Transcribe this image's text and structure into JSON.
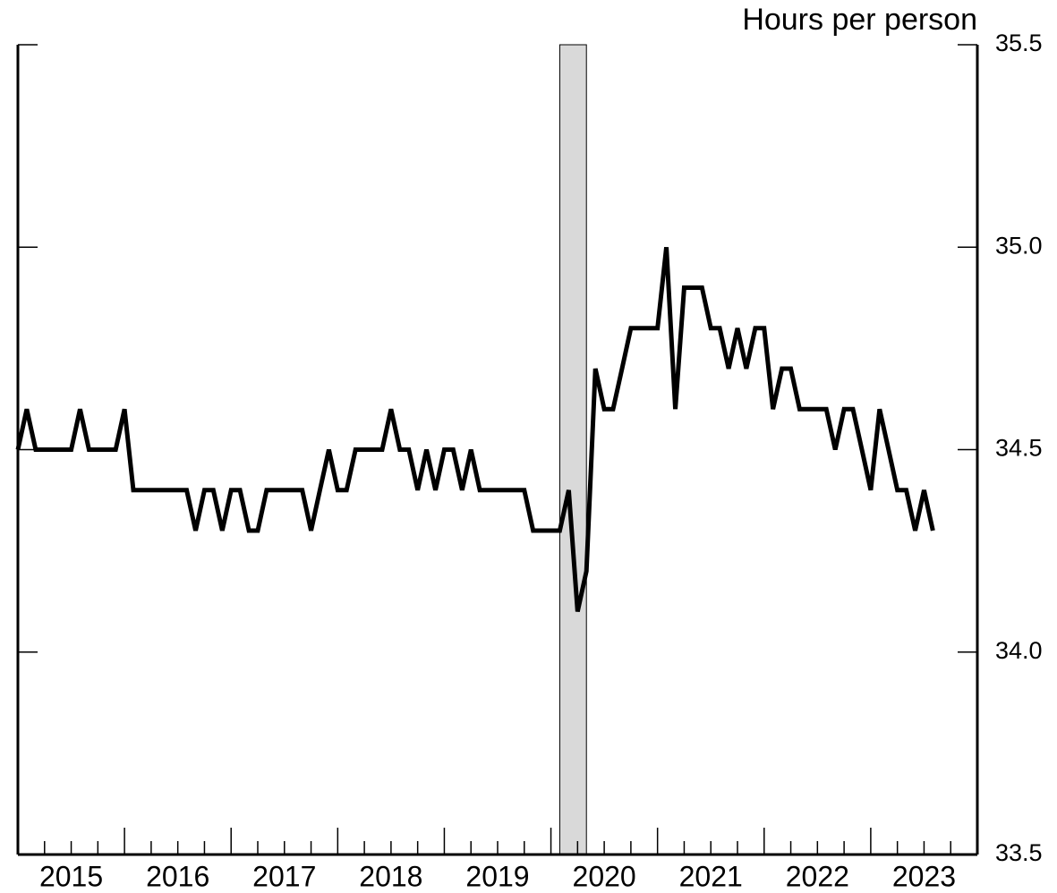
{
  "chart_data": {
    "type": "line",
    "y_axis_label": "Hours per person",
    "x": [
      2015,
      2015.083,
      2015.167,
      2015.25,
      2015.333,
      2015.417,
      2015.5,
      2015.583,
      2015.667,
      2015.75,
      2015.833,
      2015.917,
      2016,
      2016.083,
      2016.167,
      2016.25,
      2016.333,
      2016.417,
      2016.5,
      2016.583,
      2016.667,
      2016.75,
      2016.833,
      2016.917,
      2017,
      2017.083,
      2017.167,
      2017.25,
      2017.333,
      2017.417,
      2017.5,
      2017.583,
      2017.667,
      2017.75,
      2017.833,
      2017.917,
      2018,
      2018.083,
      2018.167,
      2018.25,
      2018.333,
      2018.417,
      2018.5,
      2018.583,
      2018.667,
      2018.75,
      2018.833,
      2018.917,
      2019,
      2019.083,
      2019.167,
      2019.25,
      2019.333,
      2019.417,
      2019.5,
      2019.583,
      2019.667,
      2019.75,
      2019.833,
      2019.917,
      2020,
      2020.083,
      2020.167,
      2020.25,
      2020.333,
      2020.417,
      2020.5,
      2020.583,
      2020.667,
      2020.75,
      2020.833,
      2020.917,
      2021,
      2021.083,
      2021.167,
      2021.25,
      2021.333,
      2021.417,
      2021.5,
      2021.583,
      2021.667,
      2021.75,
      2021.833,
      2021.917,
      2022,
      2022.083,
      2022.167,
      2022.25,
      2022.333,
      2022.417,
      2022.5,
      2022.583,
      2022.667,
      2022.75,
      2022.833,
      2022.917,
      2023,
      2023.083,
      2023.167,
      2023.25,
      2023.333,
      2023.417,
      2023.5,
      2023.583
    ],
    "series": [
      {
        "color": "#000000",
        "values": [
          34.5,
          34.6,
          34.5,
          34.5,
          34.5,
          34.5,
          34.5,
          34.6,
          34.5,
          34.5,
          34.5,
          34.5,
          34.6,
          34.4,
          34.4,
          34.4,
          34.4,
          34.4,
          34.4,
          34.4,
          34.3,
          34.4,
          34.4,
          34.3,
          34.4,
          34.4,
          34.3,
          34.3,
          34.4,
          34.4,
          34.4,
          34.4,
          34.4,
          34.3,
          34.4,
          34.5,
          34.4,
          34.4,
          34.5,
          34.5,
          34.5,
          34.5,
          34.6,
          34.5,
          34.5,
          34.4,
          34.5,
          34.4,
          34.5,
          34.5,
          34.4,
          34.5,
          34.4,
          34.4,
          34.4,
          34.4,
          34.4,
          34.4,
          34.3,
          34.3,
          34.3,
          34.3,
          34.4,
          34.1,
          34.2,
          34.7,
          34.6,
          34.6,
          34.7,
          34.8,
          34.8,
          34.8,
          34.8,
          35.0,
          34.6,
          34.9,
          34.9,
          34.9,
          34.8,
          34.8,
          34.7,
          34.8,
          34.7,
          34.8,
          34.8,
          34.6,
          34.7,
          34.7,
          34.6,
          34.6,
          34.6,
          34.6,
          34.5,
          34.6,
          34.6,
          34.5,
          34.4,
          34.6,
          34.5,
          34.4,
          34.4,
          34.3,
          34.4,
          34.3
        ]
      }
    ],
    "shaded_ranges": [
      [
        2020.083,
        2020.333
      ]
    ],
    "shade_color": "#d9d9d9",
    "xlim": [
      2015,
      2024
    ],
    "xticks": [
      2015,
      2016,
      2017,
      2018,
      2019,
      2020,
      2021,
      2022,
      2023
    ],
    "xminorticks": [
      2015.25,
      2015.5,
      2015.75,
      2016.25,
      2016.5,
      2016.75,
      2017.25,
      2017.5,
      2017.75,
      2018.25,
      2018.5,
      2018.75,
      2019.25,
      2019.5,
      2019.75,
      2020.25,
      2020.5,
      2020.75,
      2021.25,
      2021.5,
      2021.75,
      2022.25,
      2022.5,
      2022.75,
      2023.25,
      2023.5,
      2023.75
    ],
    "ylim": [
      33.5,
      35.5
    ],
    "yticks": [
      {
        "value": 33.5,
        "label": "33.5"
      },
      {
        "value": 34,
        "label": "34.0"
      },
      {
        "value": 34.5,
        "label": "34.5"
      },
      {
        "value": 35,
        "label": "35.0"
      },
      {
        "value": 35.5,
        "label": "35.5"
      }
    ],
    "y_axis_side": "right"
  }
}
